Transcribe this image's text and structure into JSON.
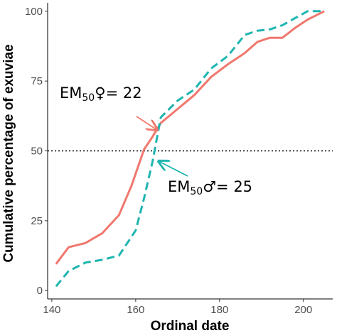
{
  "chart_data": {
    "type": "line",
    "title": "",
    "xlabel": "Ordinal date",
    "ylabel": "Cumulative percentage of exuviae",
    "xlim": [
      139,
      207
    ],
    "ylim": [
      -3,
      103
    ],
    "xticks": [
      140,
      160,
      180,
      200
    ],
    "yticks": [
      0,
      25,
      50,
      75,
      100
    ],
    "grid": false,
    "legend": "none",
    "reference_line": {
      "y": 50,
      "style": "dotted",
      "color": "#000000"
    },
    "series": [
      {
        "style": "solid",
        "color": "#f0786e",
        "x": [
          141,
          144,
          148,
          152,
          156,
          159,
          162,
          164,
          166,
          170,
          174,
          178,
          182,
          186,
          189,
          192,
          195,
          198,
          201,
          205
        ],
        "y": [
          9.5,
          15.5,
          17,
          20.5,
          27,
          37.5,
          50.5,
          55,
          60,
          65,
          70,
          76.5,
          81,
          85,
          89,
          90.5,
          90.5,
          94,
          97,
          100
        ]
      },
      {
        "style": "dashed",
        "color": "#1fb5b0",
        "x": [
          141,
          144,
          148,
          152,
          156,
          160,
          162,
          164,
          166,
          170,
          174,
          178,
          182,
          186,
          189,
          192,
          195,
          198,
          201,
          205
        ],
        "y": [
          1.5,
          7,
          10,
          11,
          12.5,
          21.5,
          33,
          46,
          62,
          68,
          72,
          79.5,
          84,
          91.5,
          93,
          93.5,
          95,
          97.5,
          100,
          100
        ]
      }
    ],
    "annotations": [
      {
        "main": "EM",
        "sub": "50",
        "symbol": "♀",
        "value": "= 22",
        "color": "#f0786e"
      },
      {
        "main": "EM",
        "sub": "50",
        "symbol": "♂",
        "value": "= 25",
        "color": "#1fb5b0"
      }
    ]
  }
}
